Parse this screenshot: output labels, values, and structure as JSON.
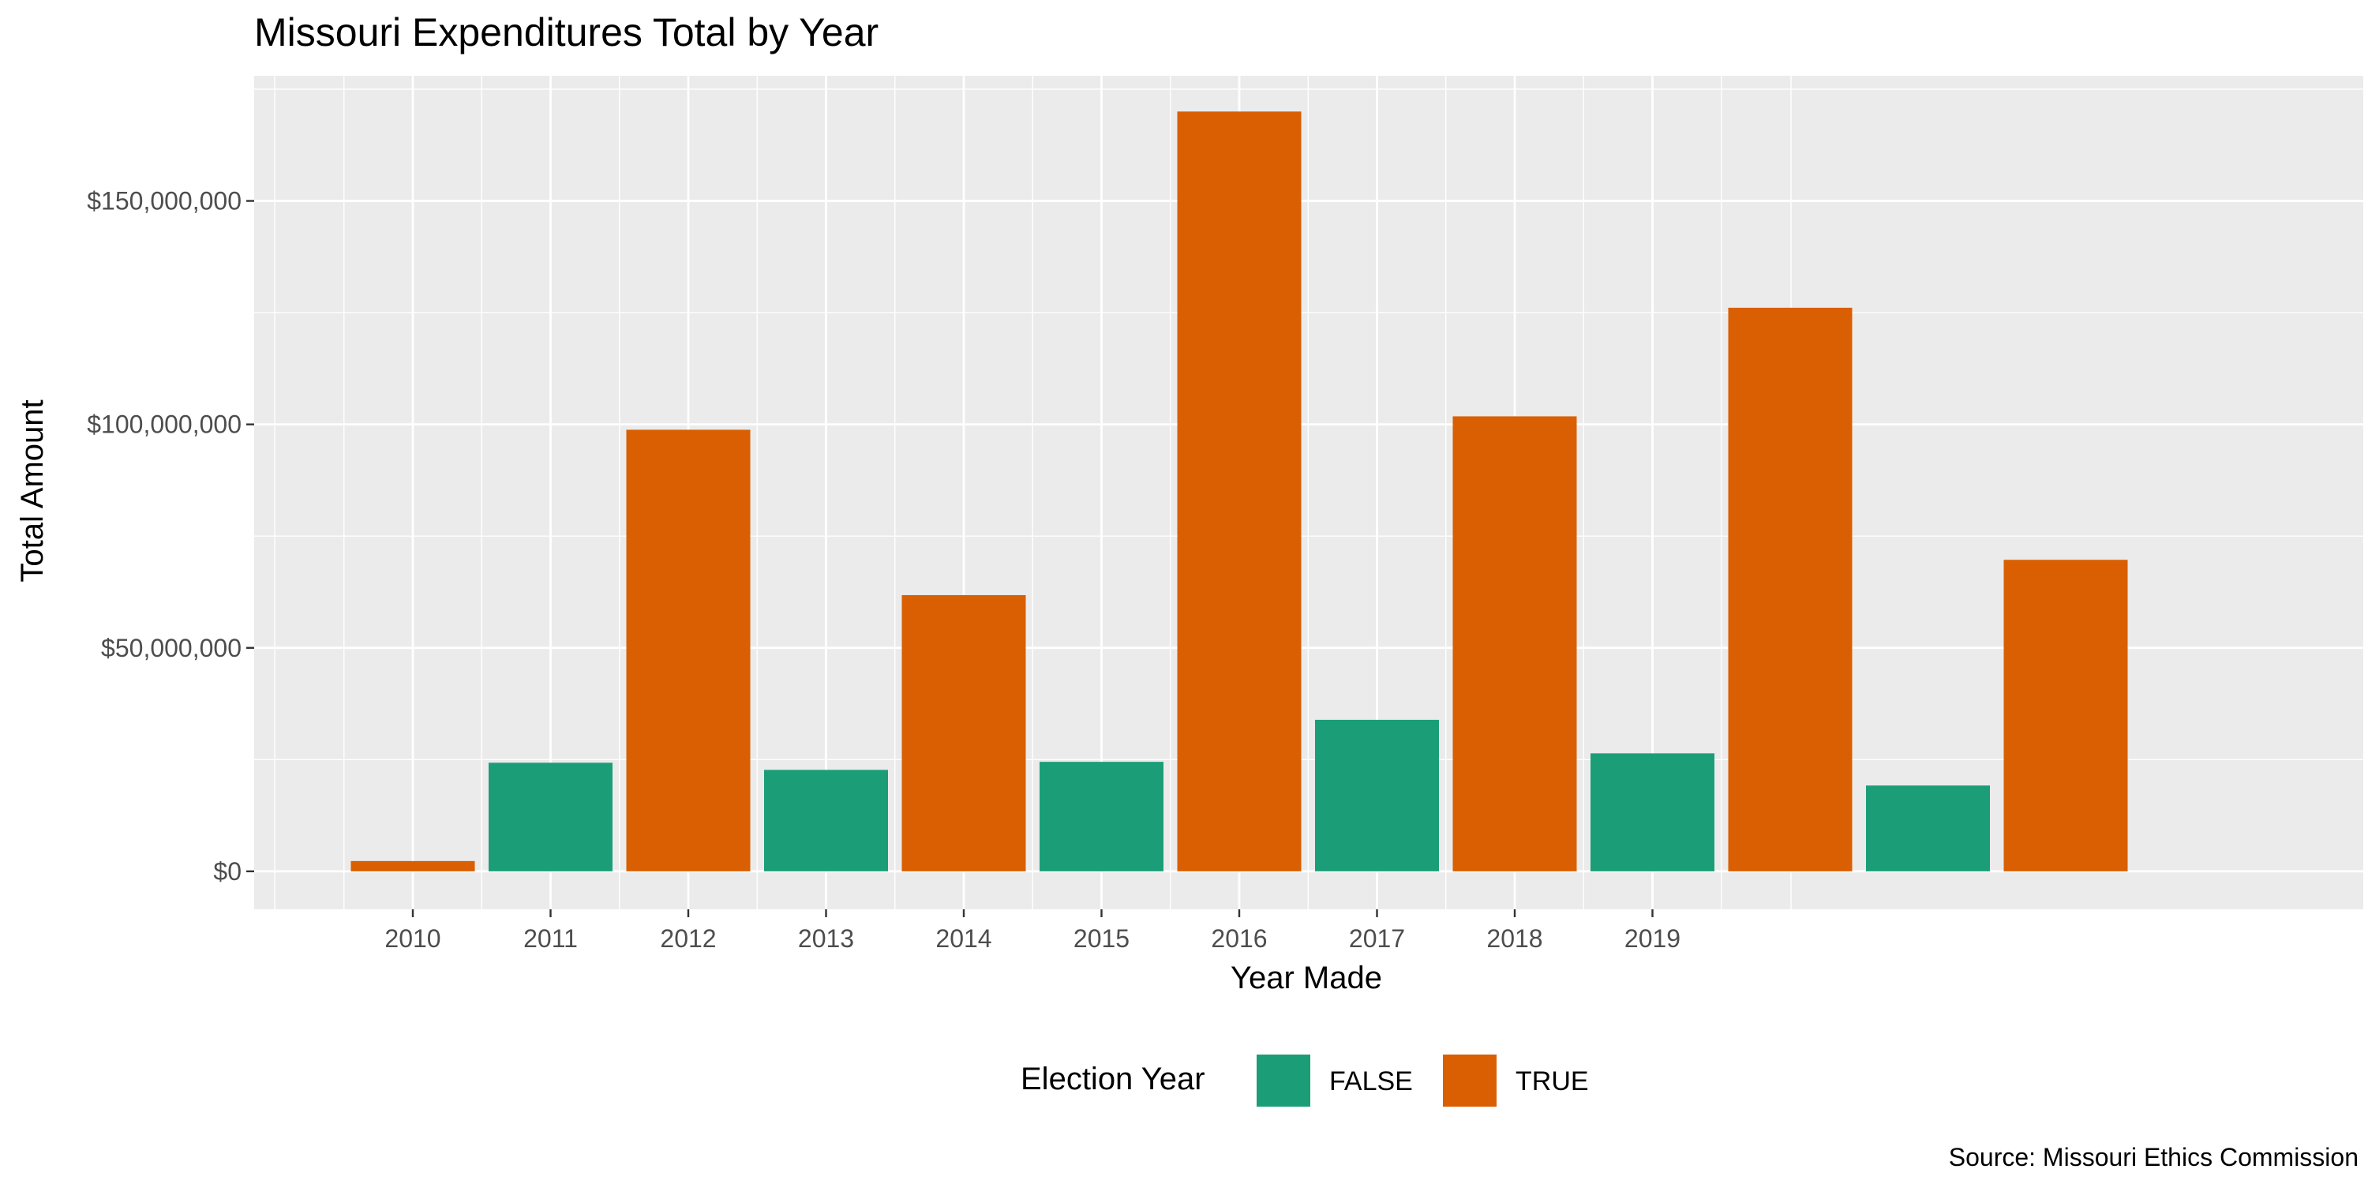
{
  "chart_data": {
    "type": "bar",
    "title": "Missouri Expenditures Total by Year",
    "xlabel": "Year Made",
    "ylabel": "Total Amount",
    "caption": "Source: Missouri Ethics Commission",
    "x_tick_labels": [
      "2010",
      "2011",
      "2012",
      "2013",
      "2014",
      "2015",
      "2016",
      "2017",
      "2018",
      "2019"
    ],
    "y_ticks": [
      0,
      50000000,
      100000000,
      150000000
    ],
    "y_tick_labels": [
      "$0",
      "$50,000,000",
      "$100,000,000",
      "$150,000,000"
    ],
    "ylim": [
      -8500000,
      178000000
    ],
    "grid": true,
    "legend": {
      "title": "Election Year",
      "position": "bottom",
      "entries": [
        {
          "label": "FALSE",
          "color": "#1b9e77"
        },
        {
          "label": "TRUE",
          "color": "#d95f02"
        }
      ]
    },
    "bars": [
      {
        "election_year": "TRUE",
        "value": 2300000
      },
      {
        "election_year": "FALSE",
        "value": 24300000
      },
      {
        "election_year": "TRUE",
        "value": 98800000
      },
      {
        "election_year": "FALSE",
        "value": 22700000
      },
      {
        "election_year": "TRUE",
        "value": 61800000
      },
      {
        "election_year": "FALSE",
        "value": 24500000
      },
      {
        "election_year": "TRUE",
        "value": 170000000
      },
      {
        "election_year": "FALSE",
        "value": 33900000
      },
      {
        "election_year": "TRUE",
        "value": 101800000
      },
      {
        "election_year": "FALSE",
        "value": 26400000
      },
      {
        "election_year": "TRUE",
        "value": 126100000
      },
      {
        "election_year": "FALSE",
        "value": 19200000
      },
      {
        "election_year": "TRUE",
        "value": 69700000
      }
    ]
  }
}
